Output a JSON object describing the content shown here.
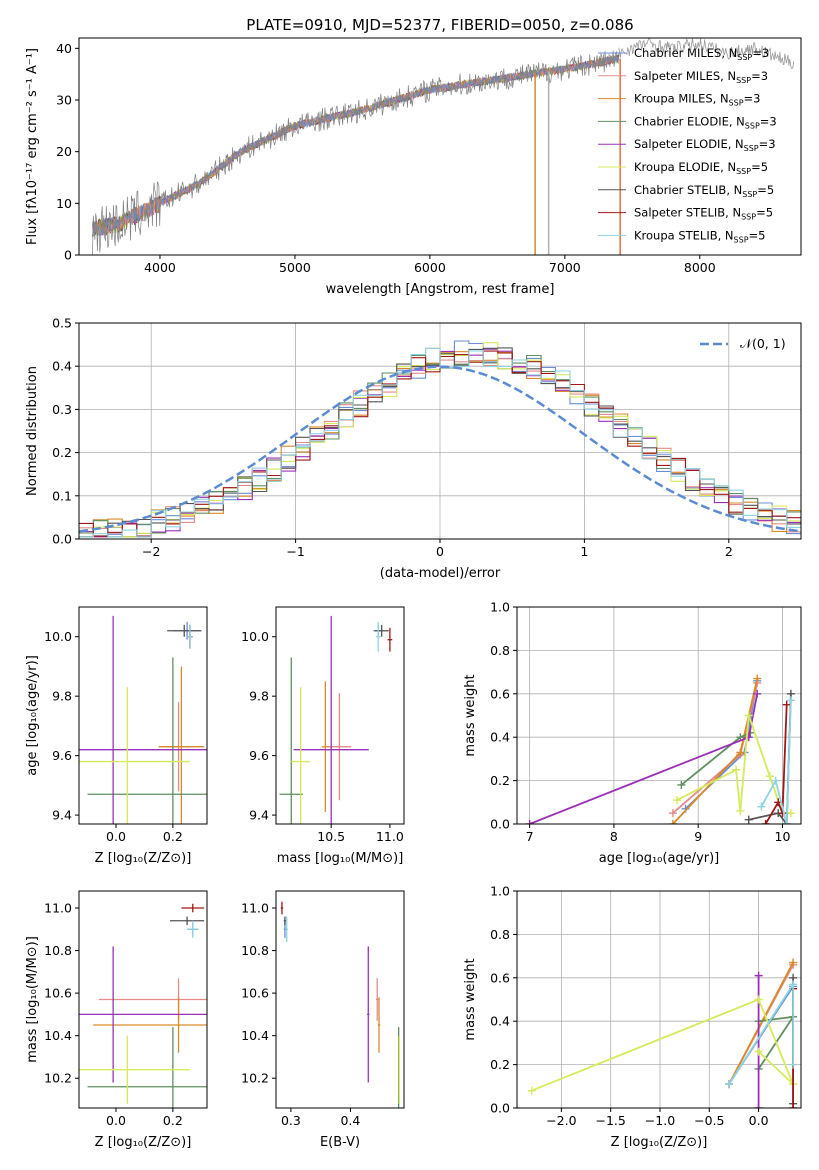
{
  "figure_title": "PLATE=0910, MJD=52377, FIBERID=0050, z=0.086",
  "models": [
    {
      "key": "chab_miles",
      "label": "Chabrier MILES, N",
      "sub": "SSP",
      "suffix": "=3",
      "color": "#6a8ed6"
    },
    {
      "key": "salp_miles",
      "label": "Salpeter MILES, N",
      "sub": "SSP",
      "suffix": "=3",
      "color": "#e68a8a"
    },
    {
      "key": "krou_miles",
      "label": "Kroupa MILES, N",
      "sub": "SSP",
      "suffix": "=3",
      "color": "#d98a28"
    },
    {
      "key": "chab_elod",
      "label": "Chabrier ELODIE, N",
      "sub": "SSP",
      "suffix": "=3",
      "color": "#5f8f5f"
    },
    {
      "key": "salp_elod",
      "label": "Salpeter ELODIE, N",
      "sub": "SSP",
      "suffix": "=3",
      "color": "#9b30b8"
    },
    {
      "key": "krou_elod",
      "label": "Kroupa ELODIE, N",
      "sub": "SSP",
      "suffix": "=5",
      "color": "#d6ea5a"
    },
    {
      "key": "chab_stel",
      "label": "Chabrier STELIB, N",
      "sub": "SSP",
      "suffix": "=5",
      "color": "#555555"
    },
    {
      "key": "salp_stel",
      "label": "Salpeter STELIB, N",
      "sub": "SSP",
      "suffix": "=5",
      "color": "#a01818"
    },
    {
      "key": "krou_stel",
      "label": "Kroupa STELIB, N",
      "sub": "SSP",
      "suffix": "=5",
      "color": "#8ed3e0"
    }
  ],
  "chart_data": [
    {
      "id": "spectrum",
      "type": "line",
      "xlabel": "wavelength [Angstrom, rest frame]",
      "ylabel": "Flux [fλ10⁻¹⁷ erg cm⁻² s⁻¹ A⁻¹]",
      "xlim": [
        3400,
        8750
      ],
      "ylim": [
        0,
        42
      ],
      "xticks": [
        4000,
        5000,
        6000,
        7000,
        8000
      ],
      "yticks": [
        0,
        10,
        20,
        30,
        40
      ],
      "grid": false,
      "legend": "right",
      "data_color": "#808080",
      "continuum": {
        "x": [
          3500,
          3700,
          4000,
          4300,
          4600,
          5000,
          5500,
          6000,
          6500,
          7000,
          7400
        ],
        "y": [
          5,
          6,
          10,
          14,
          20,
          25,
          28,
          32,
          34,
          36,
          38
        ]
      },
      "data_extra": {
        "x": [
          7400,
          7600,
          7800,
          8000,
          8200,
          8400,
          8700
        ],
        "y": [
          39,
          41,
          40,
          41,
          39,
          40,
          37
        ]
      },
      "dropouts": [
        {
          "x": 6780,
          "color": "#d98a28"
        },
        {
          "x": 6880,
          "color": "#b0b0b0"
        },
        {
          "x": 7410,
          "color": "#e07040"
        }
      ]
    },
    {
      "id": "residuals",
      "type": "histogram",
      "xlabel": "(data-model)/error",
      "ylabel": "Normed distribution",
      "xlim": [
        -2.5,
        2.5
      ],
      "ylim": [
        0,
        0.5
      ],
      "xticks": [
        -2,
        -1,
        0,
        1,
        2
      ],
      "yticks": [
        0.0,
        0.1,
        0.2,
        0.3,
        0.4,
        0.5
      ],
      "grid": true,
      "legend": "top-right",
      "normal_curve": {
        "label": "𝒩(0, 1)",
        "color": "#5b8bd0",
        "mean": 0,
        "sigma": 1
      },
      "bin_width": 0.1
    },
    {
      "id": "age_vs_Z",
      "type": "errorbar",
      "xlabel": "Z [log₁₀(Z/Z⊙)]",
      "ylabel": "age  [log₁₀(age/yr)]",
      "xlim": [
        -0.13,
        0.32
      ],
      "ylim": [
        9.37,
        10.1
      ],
      "xticks": [
        0.0,
        0.2
      ],
      "yticks": [
        9.4,
        9.6,
        9.8,
        10.0
      ],
      "grid": false,
      "points": [
        {
          "m": "chab_miles",
          "x": 0.25,
          "y": 10.02,
          "ex": 0.05,
          "ey": 0.03
        },
        {
          "m": "salp_miles",
          "x": 0.22,
          "y": 9.63,
          "ex": 0.05,
          "ey": 0.15
        },
        {
          "m": "krou_miles",
          "x": 0.23,
          "y": 9.63,
          "ex": 0.08,
          "ey": 0.27
        },
        {
          "m": "chab_elod",
          "x": 0.2,
          "y": 9.47,
          "ex": 0.3,
          "ey": 0.46
        },
        {
          "m": "salp_elod",
          "x": -0.01,
          "y": 9.62,
          "ex": 0.4,
          "ey": 0.45
        },
        {
          "m": "krou_elod",
          "x": 0.04,
          "y": 9.58,
          "ex": 0.22,
          "ey": 0.25
        },
        {
          "m": "chab_stel",
          "x": 0.24,
          "y": 10.02,
          "ex": 0.06,
          "ey": 0.02
        },
        {
          "m": "salp_stel",
          "x": 0.26,
          "y": 10.0,
          "ex": 0.01,
          "ey": 0.04
        },
        {
          "m": "krou_stel",
          "x": 0.26,
          "y": 10.0,
          "ex": 0.01,
          "ey": 0.04
        }
      ]
    },
    {
      "id": "age_vs_mass",
      "type": "errorbar",
      "xlabel": "mass [log₁₀(M/M⊙)]",
      "ylabel": "",
      "xlim": [
        10.03,
        11.12
      ],
      "ylim": [
        9.37,
        10.1
      ],
      "xticks": [
        10.5,
        11.0
      ],
      "yticks": [
        9.4,
        9.6,
        9.8,
        10.0
      ],
      "grid": false,
      "points": [
        {
          "m": "chab_miles",
          "x": 10.9,
          "y": 10.02,
          "ex": 0.04,
          "ey": 0.02
        },
        {
          "m": "salp_miles",
          "x": 10.57,
          "y": 9.63,
          "ex": 0.1,
          "ey": 0.18
        },
        {
          "m": "krou_miles",
          "x": 10.45,
          "y": 9.63,
          "ex": 0.03,
          "ey": 0.22
        },
        {
          "m": "chab_elod",
          "x": 10.16,
          "y": 9.47,
          "ex": 0.1,
          "ey": 0.46
        },
        {
          "m": "salp_elod",
          "x": 10.5,
          "y": 9.62,
          "ex": 0.32,
          "ey": 0.45
        },
        {
          "m": "krou_elod",
          "x": 10.24,
          "y": 9.58,
          "ex": 0.08,
          "ey": 0.25
        },
        {
          "m": "chab_stel",
          "x": 10.93,
          "y": 10.02,
          "ex": 0.06,
          "ey": 0.02
        },
        {
          "m": "salp_stel",
          "x": 11.0,
          "y": 9.99,
          "ex": 0.02,
          "ey": 0.04
        },
        {
          "m": "krou_stel",
          "x": 10.9,
          "y": 10.0,
          "ex": 0.02,
          "ey": 0.05
        }
      ]
    },
    {
      "id": "weight_vs_age",
      "type": "line",
      "xlabel": "age  [log₁₀(age/yr)]",
      "ylabel": "mass weight",
      "xlim": [
        6.85,
        10.22
      ],
      "ylim": [
        0,
        1
      ],
      "xticks": [
        7,
        8,
        9,
        10
      ],
      "yticks": [
        0.0,
        0.2,
        0.4,
        0.6,
        0.8,
        1.0
      ],
      "grid": true,
      "series": [
        {
          "m": "chab_miles",
          "x": [
            8.85,
            9.55,
            9.7
          ],
          "y": [
            0.07,
            0.33,
            0.66
          ]
        },
        {
          "m": "salp_miles",
          "x": [
            8.7,
            9.5,
            9.7
          ],
          "y": [
            0.05,
            0.32,
            0.65
          ]
        },
        {
          "m": "krou_miles",
          "x": [
            8.7,
            9.5,
            9.7
          ],
          "y": [
            0.0,
            0.33,
            0.67
          ]
        },
        {
          "m": "chab_elod",
          "x": [
            8.8,
            9.5,
            9.62
          ],
          "y": [
            0.18,
            0.4,
            0.42
          ]
        },
        {
          "m": "salp_elod",
          "x": [
            7.0,
            9.6,
            9.7
          ],
          "y": [
            0.0,
            0.4,
            0.6
          ]
        },
        {
          "m": "krou_elod",
          "x": [
            8.75,
            9.45,
            9.5,
            9.6,
            9.85,
            10.0,
            10.1
          ],
          "y": [
            0.11,
            0.25,
            0.06,
            0.5,
            0.22,
            0.05,
            0.05
          ]
        },
        {
          "m": "chab_stel",
          "x": [
            9.6,
            9.95,
            10.05,
            10.1
          ],
          "y": [
            0.02,
            0.05,
            0.0,
            0.6
          ]
        },
        {
          "m": "salp_stel",
          "x": [
            9.8,
            9.95,
            10.0,
            10.05
          ],
          "y": [
            0.0,
            0.1,
            0.05,
            0.55
          ]
        },
        {
          "m": "krou_stel",
          "x": [
            9.75,
            9.92,
            10.05,
            10.1
          ],
          "y": [
            0.08,
            0.2,
            0.0,
            0.57
          ]
        }
      ]
    },
    {
      "id": "mass_vs_Z",
      "type": "errorbar",
      "xlabel": "Z [log₁₀(Z/Z⊙)]",
      "ylabel": "mass [log₁₀(M/M⊙)]",
      "xlim": [
        -0.13,
        0.32
      ],
      "ylim": [
        10.06,
        11.08
      ],
      "xticks": [
        0.0,
        0.2
      ],
      "yticks": [
        10.2,
        10.4,
        10.6,
        10.8,
        11.0
      ],
      "grid": false,
      "points": [
        {
          "m": "chab_miles",
          "x": 0.27,
          "y": 10.9,
          "ex": 0.02,
          "ey": 0.03
        },
        {
          "m": "salp_miles",
          "x": 0.22,
          "y": 10.57,
          "ex": 0.28,
          "ey": 0.1
        },
        {
          "m": "krou_miles",
          "x": 0.22,
          "y": 10.45,
          "ex": 0.3,
          "ey": 0.13
        },
        {
          "m": "chab_elod",
          "x": 0.2,
          "y": 10.16,
          "ex": 0.3,
          "ey": 0.28
        },
        {
          "m": "salp_elod",
          "x": -0.01,
          "y": 10.5,
          "ex": 0.4,
          "ey": 0.32
        },
        {
          "m": "krou_elod",
          "x": 0.04,
          "y": 10.24,
          "ex": 0.22,
          "ey": 0.16
        },
        {
          "m": "chab_stel",
          "x": 0.25,
          "y": 10.94,
          "ex": 0.06,
          "ey": 0.02
        },
        {
          "m": "salp_stel",
          "x": 0.27,
          "y": 11.0,
          "ex": 0.04,
          "ey": 0.02
        },
        {
          "m": "krou_stel",
          "x": 0.27,
          "y": 10.9,
          "ex": 0.02,
          "ey": 0.04
        }
      ]
    },
    {
      "id": "mass_vs_ebv",
      "type": "errorbar",
      "xlabel": "E(B-V)",
      "ylabel": "",
      "xlim": [
        0.275,
        0.49
      ],
      "ylim": [
        10.06,
        11.08
      ],
      "xticks": [
        0.3,
        0.4
      ],
      "yticks": [
        10.2,
        10.4,
        10.6,
        10.8,
        11.0
      ],
      "grid": false,
      "points": [
        {
          "m": "chab_miles",
          "x": 0.29,
          "y": 10.9,
          "ex": 0.002,
          "ey": 0.04
        },
        {
          "m": "salp_miles",
          "x": 0.445,
          "y": 10.57,
          "ex": 0.002,
          "ey": 0.1
        },
        {
          "m": "krou_miles",
          "x": 0.448,
          "y": 10.45,
          "ex": 0.002,
          "ey": 0.13
        },
        {
          "m": "chab_elod",
          "x": 0.481,
          "y": 10.16,
          "ex": 0.001,
          "ey": 0.28
        },
        {
          "m": "salp_elod",
          "x": 0.43,
          "y": 10.5,
          "ex": 0.002,
          "ey": 0.32
        },
        {
          "m": "krou_elod",
          "x": 0.482,
          "y": 10.24,
          "ex": 0.001,
          "ey": 0.16
        },
        {
          "m": "chab_stel",
          "x": 0.29,
          "y": 10.94,
          "ex": 0.002,
          "ey": 0.02
        },
        {
          "m": "salp_stel",
          "x": 0.285,
          "y": 11.0,
          "ex": 0.002,
          "ey": 0.03
        },
        {
          "m": "krou_stel",
          "x": 0.293,
          "y": 10.9,
          "ex": 0.002,
          "ey": 0.06
        }
      ]
    },
    {
      "id": "weight_vs_Z",
      "type": "line",
      "xlabel": "Z [log₁₀(Z/Z⊙)]",
      "ylabel": "mass weight",
      "xlim": [
        -2.45,
        0.43
      ],
      "ylim": [
        0,
        1
      ],
      "xticks": [
        -2.0,
        -1.5,
        -1.0,
        -0.5,
        0.0
      ],
      "yticks": [
        0.0,
        0.2,
        0.4,
        0.6,
        0.8,
        1.0
      ],
      "grid": true,
      "series": [
        {
          "m": "chab_miles",
          "x": [
            -0.3,
            0.35
          ],
          "y": [
            0.11,
            0.56
          ]
        },
        {
          "m": "salp_miles",
          "x": [
            -0.3,
            0.35
          ],
          "y": [
            0.11,
            0.66
          ]
        },
        {
          "m": "krou_miles",
          "x": [
            -0.3,
            0.35
          ],
          "y": [
            0.11,
            0.67
          ]
        },
        {
          "m": "chab_elod",
          "x": [
            0.0,
            0.35,
            0.0
          ],
          "y": [
            0.4,
            0.42,
            0.18
          ]
        },
        {
          "m": "salp_elod",
          "x": [
            0.0,
            0.0
          ],
          "y": [
            0.0,
            0.61
          ]
        },
        {
          "m": "krou_elod",
          "x": [
            -2.3,
            0.0,
            0.35,
            0.0
          ],
          "y": [
            0.08,
            0.5,
            0.11,
            0.26
          ]
        },
        {
          "m": "chab_stel",
          "x": [
            0.35,
            0.35
          ],
          "y": [
            0.02,
            0.6
          ]
        },
        {
          "m": "salp_stel",
          "x": [
            0.35,
            0.35
          ],
          "y": [
            0.0,
            0.55
          ]
        },
        {
          "m": "krou_stel",
          "x": [
            -0.3,
            0.35,
            0.35
          ],
          "y": [
            0.11,
            0.57,
            0.2
          ]
        }
      ]
    }
  ]
}
